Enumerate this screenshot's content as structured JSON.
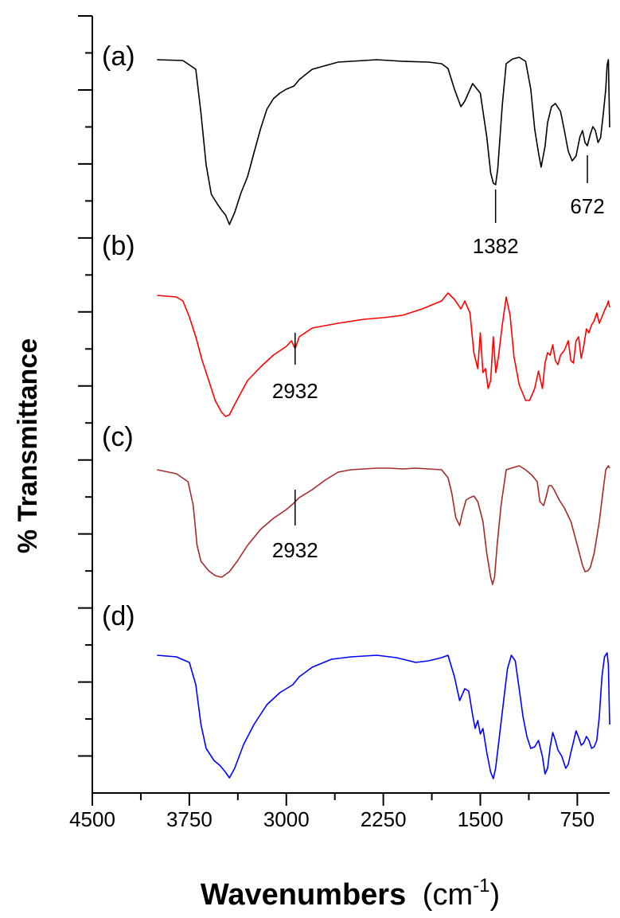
{
  "chart_data": {
    "type": "line",
    "xlabel": "Wavenumbers",
    "xlabel_unit_open": "(cm",
    "xlabel_unit_sup": "-1",
    "xlabel_unit_close": ")",
    "ylabel": "% Transmittance",
    "x_reversed": true,
    "xlim": [
      4500,
      500
    ],
    "x_ticks": [
      4500,
      3750,
      3000,
      2250,
      1500,
      750
    ],
    "x_tick_labels": [
      "4500",
      "3750",
      "3000",
      "2250",
      "1500",
      "750"
    ],
    "grid": false,
    "legend": "none",
    "series": [
      {
        "label": "(a)",
        "color": "#000000",
        "points": [
          [
            4000,
            3
          ],
          [
            3800,
            4
          ],
          [
            3700,
            15
          ],
          [
            3660,
            70
          ],
          [
            3620,
            135
          ],
          [
            3580,
            172
          ],
          [
            3530,
            185
          ],
          [
            3500,
            192
          ],
          [
            3470,
            198
          ],
          [
            3440,
            210
          ],
          [
            3400,
            195
          ],
          [
            3350,
            170
          ],
          [
            3300,
            150
          ],
          [
            3250,
            120
          ],
          [
            3200,
            90
          ],
          [
            3150,
            65
          ],
          [
            3100,
            52
          ],
          [
            3050,
            45
          ],
          [
            3000,
            40
          ],
          [
            2940,
            36
          ],
          [
            2900,
            28
          ],
          [
            2800,
            15
          ],
          [
            2600,
            6
          ],
          [
            2400,
            4
          ],
          [
            2300,
            3
          ],
          [
            2100,
            5
          ],
          [
            1900,
            6
          ],
          [
            1800,
            8
          ],
          [
            1750,
            14
          ],
          [
            1700,
            40
          ],
          [
            1650,
            62
          ],
          [
            1620,
            55
          ],
          [
            1560,
            33
          ],
          [
            1500,
            45
          ],
          [
            1450,
            100
          ],
          [
            1420,
            145
          ],
          [
            1400,
            158
          ],
          [
            1382,
            160
          ],
          [
            1365,
            140
          ],
          [
            1330,
            60
          ],
          [
            1300,
            8
          ],
          [
            1250,
            2
          ],
          [
            1200,
            0
          ],
          [
            1150,
            5
          ],
          [
            1110,
            40
          ],
          [
            1080,
            90
          ],
          [
            1050,
            120
          ],
          [
            1030,
            138
          ],
          [
            1000,
            112
          ],
          [
            980,
            82
          ],
          [
            950,
            62
          ],
          [
            920,
            58
          ],
          [
            880,
            68
          ],
          [
            850,
            92
          ],
          [
            820,
            118
          ],
          [
            790,
            130
          ],
          [
            760,
            124
          ],
          [
            730,
            100
          ],
          [
            710,
            92
          ],
          [
            690,
            107
          ],
          [
            672,
            111
          ],
          [
            650,
            97
          ],
          [
            630,
            87
          ],
          [
            610,
            92
          ],
          [
            590,
            107
          ],
          [
            570,
            101
          ],
          [
            550,
            72
          ],
          [
            530,
            40
          ],
          [
            520,
            10
          ],
          [
            510,
            3
          ],
          [
            500,
            88
          ]
        ]
      },
      {
        "label": "(b)",
        "color": "#ff0000",
        "points": [
          [
            4000,
            3
          ],
          [
            3850,
            5
          ],
          [
            3800,
            10
          ],
          [
            3750,
            30
          ],
          [
            3700,
            55
          ],
          [
            3650,
            85
          ],
          [
            3600,
            110
          ],
          [
            3550,
            135
          ],
          [
            3500,
            150
          ],
          [
            3470,
            155
          ],
          [
            3440,
            153
          ],
          [
            3400,
            140
          ],
          [
            3350,
            125
          ],
          [
            3300,
            110
          ],
          [
            3200,
            93
          ],
          [
            3100,
            78
          ],
          [
            3000,
            67
          ],
          [
            2960,
            60
          ],
          [
            2932,
            70
          ],
          [
            2900,
            55
          ],
          [
            2800,
            44
          ],
          [
            2600,
            38
          ],
          [
            2400,
            33
          ],
          [
            2250,
            31
          ],
          [
            2100,
            28
          ],
          [
            1950,
            20
          ],
          [
            1800,
            10
          ],
          [
            1750,
            0
          ],
          [
            1700,
            8
          ],
          [
            1650,
            20
          ],
          [
            1620,
            10
          ],
          [
            1580,
            25
          ],
          [
            1550,
            75
          ],
          [
            1520,
            95
          ],
          [
            1500,
            50
          ],
          [
            1480,
            100
          ],
          [
            1460,
            95
          ],
          [
            1440,
            120
          ],
          [
            1420,
            110
          ],
          [
            1400,
            55
          ],
          [
            1380,
            100
          ],
          [
            1360,
            80
          ],
          [
            1330,
            40
          ],
          [
            1300,
            5
          ],
          [
            1270,
            28
          ],
          [
            1240,
            80
          ],
          [
            1200,
            115
          ],
          [
            1150,
            135
          ],
          [
            1120,
            135
          ],
          [
            1080,
            120
          ],
          [
            1050,
            98
          ],
          [
            1020,
            120
          ],
          [
            1000,
            88
          ],
          [
            980,
            75
          ],
          [
            960,
            78
          ],
          [
            940,
            65
          ],
          [
            920,
            85
          ],
          [
            900,
            90
          ],
          [
            880,
            78
          ],
          [
            850,
            72
          ],
          [
            820,
            60
          ],
          [
            800,
            85
          ],
          [
            780,
            88
          ],
          [
            760,
            60
          ],
          [
            740,
            55
          ],
          [
            720,
            82
          ],
          [
            700,
            66
          ],
          [
            680,
            45
          ],
          [
            660,
            50
          ],
          [
            640,
            40
          ],
          [
            620,
            35
          ],
          [
            600,
            25
          ],
          [
            580,
            38
          ],
          [
            560,
            30
          ],
          [
            540,
            22
          ],
          [
            520,
            15
          ],
          [
            510,
            10
          ],
          [
            500,
            18
          ]
        ]
      },
      {
        "label": "(c)",
        "color": "#a52a2a",
        "points": [
          [
            4000,
            5
          ],
          [
            3850,
            10
          ],
          [
            3760,
            20
          ],
          [
            3720,
            50
          ],
          [
            3690,
            100
          ],
          [
            3660,
            120
          ],
          [
            3600,
            132
          ],
          [
            3550,
            138
          ],
          [
            3500,
            140
          ],
          [
            3440,
            133
          ],
          [
            3380,
            120
          ],
          [
            3300,
            100
          ],
          [
            3200,
            80
          ],
          [
            3100,
            66
          ],
          [
            3000,
            55
          ],
          [
            2950,
            48
          ],
          [
            2900,
            40
          ],
          [
            2800,
            30
          ],
          [
            2700,
            18
          ],
          [
            2600,
            8
          ],
          [
            2500,
            5
          ],
          [
            2400,
            4
          ],
          [
            2300,
            3
          ],
          [
            2200,
            3
          ],
          [
            2100,
            4
          ],
          [
            2000,
            3
          ],
          [
            1900,
            4
          ],
          [
            1800,
            5
          ],
          [
            1750,
            15
          ],
          [
            1720,
            35
          ],
          [
            1690,
            65
          ],
          [
            1660,
            75
          ],
          [
            1640,
            60
          ],
          [
            1610,
            43
          ],
          [
            1580,
            40
          ],
          [
            1550,
            38
          ],
          [
            1520,
            45
          ],
          [
            1480,
            70
          ],
          [
            1450,
            110
          ],
          [
            1420,
            140
          ],
          [
            1405,
            149
          ],
          [
            1390,
            140
          ],
          [
            1370,
            100
          ],
          [
            1340,
            50
          ],
          [
            1300,
            5
          ],
          [
            1200,
            0
          ],
          [
            1150,
            5
          ],
          [
            1100,
            12
          ],
          [
            1060,
            20
          ],
          [
            1040,
            45
          ],
          [
            1010,
            50
          ],
          [
            990,
            38
          ],
          [
            970,
            25
          ],
          [
            950,
            25
          ],
          [
            930,
            30
          ],
          [
            890,
            43
          ],
          [
            850,
            53
          ],
          [
            800,
            70
          ],
          [
            750,
            100
          ],
          [
            710,
            125
          ],
          [
            690,
            133
          ],
          [
            670,
            132
          ],
          [
            650,
            128
          ],
          [
            620,
            110
          ],
          [
            580,
            70
          ],
          [
            550,
            30
          ],
          [
            530,
            5
          ],
          [
            510,
            0
          ],
          [
            500,
            3
          ]
        ]
      },
      {
        "label": "(d)",
        "color": "#0000ff",
        "points": [
          [
            4000,
            3
          ],
          [
            3850,
            5
          ],
          [
            3750,
            12
          ],
          [
            3700,
            40
          ],
          [
            3660,
            90
          ],
          [
            3620,
            120
          ],
          [
            3560,
            135
          ],
          [
            3510,
            142
          ],
          [
            3470,
            150
          ],
          [
            3440,
            157
          ],
          [
            3400,
            145
          ],
          [
            3330,
            115
          ],
          [
            3250,
            90
          ],
          [
            3150,
            65
          ],
          [
            3050,
            50
          ],
          [
            2950,
            40
          ],
          [
            2900,
            30
          ],
          [
            2800,
            18
          ],
          [
            2650,
            8
          ],
          [
            2500,
            5
          ],
          [
            2300,
            3
          ],
          [
            2150,
            6
          ],
          [
            2000,
            12
          ],
          [
            1900,
            10
          ],
          [
            1800,
            6
          ],
          [
            1750,
            3
          ],
          [
            1700,
            30
          ],
          [
            1660,
            60
          ],
          [
            1620,
            45
          ],
          [
            1590,
            48
          ],
          [
            1560,
            78
          ],
          [
            1540,
            95
          ],
          [
            1520,
            85
          ],
          [
            1500,
            102
          ],
          [
            1480,
            95
          ],
          [
            1450,
            125
          ],
          [
            1420,
            150
          ],
          [
            1400,
            158
          ],
          [
            1382,
            145
          ],
          [
            1360,
            115
          ],
          [
            1320,
            60
          ],
          [
            1290,
            20
          ],
          [
            1260,
            3
          ],
          [
            1230,
            10
          ],
          [
            1200,
            45
          ],
          [
            1170,
            80
          ],
          [
            1140,
            105
          ],
          [
            1110,
            120
          ],
          [
            1080,
            118
          ],
          [
            1050,
            110
          ],
          [
            1020,
            130
          ],
          [
            1000,
            152
          ],
          [
            980,
            145
          ],
          [
            960,
            118
          ],
          [
            940,
            100
          ],
          [
            920,
            110
          ],
          [
            900,
            122
          ],
          [
            870,
            130
          ],
          [
            840,
            145
          ],
          [
            820,
            140
          ],
          [
            800,
            125
          ],
          [
            780,
            112
          ],
          [
            760,
            98
          ],
          [
            740,
            106
          ],
          [
            720,
            116
          ],
          [
            700,
            113
          ],
          [
            680,
            105
          ],
          [
            660,
            110
          ],
          [
            640,
            120
          ],
          [
            620,
            118
          ],
          [
            600,
            110
          ],
          [
            580,
            80
          ],
          [
            560,
            30
          ],
          [
            540,
            5
          ],
          [
            520,
            0
          ],
          [
            510,
            15
          ],
          [
            500,
            90
          ]
        ]
      }
    ],
    "annotations": [
      {
        "series": "(a)",
        "text": "1382",
        "x": 1382
      },
      {
        "series": "(a)",
        "text": "672",
        "x": 672
      },
      {
        "series": "(b)",
        "text": "2932",
        "x": 2932
      },
      {
        "series": "(c)",
        "text": "2932",
        "x": 2932
      }
    ]
  }
}
